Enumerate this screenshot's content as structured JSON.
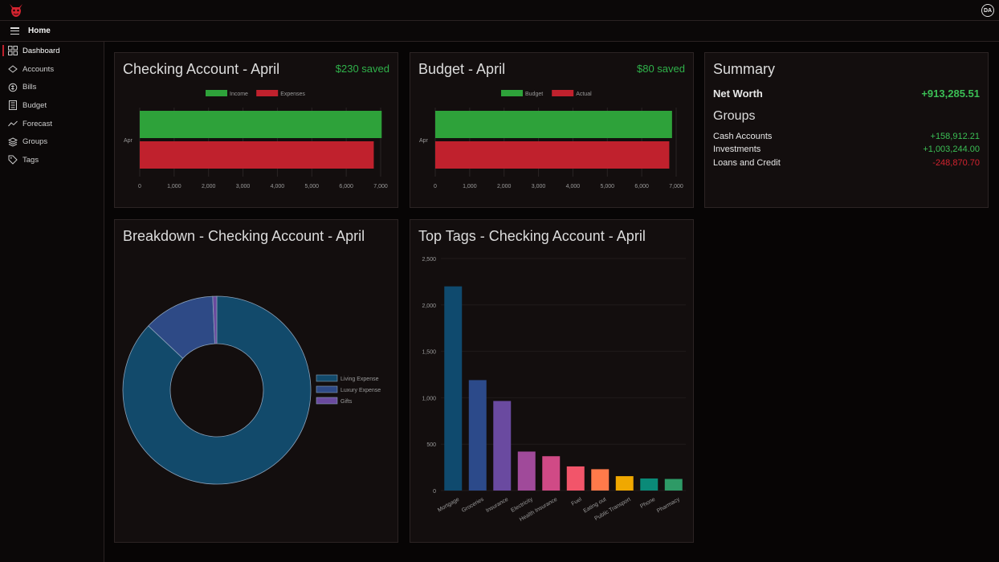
{
  "header": {
    "user_initials": "DA"
  },
  "subbar": {
    "title": "Home"
  },
  "sidebar": {
    "items": [
      {
        "label": "Dashboard",
        "icon": "dashboard-icon",
        "active": true
      },
      {
        "label": "Accounts",
        "icon": "accounts-icon"
      },
      {
        "label": "Bills",
        "icon": "bills-icon"
      },
      {
        "label": "Budget",
        "icon": "budget-icon"
      },
      {
        "label": "Forecast",
        "icon": "forecast-icon"
      },
      {
        "label": "Groups",
        "icon": "groups-icon"
      },
      {
        "label": "Tags",
        "icon": "tags-icon"
      }
    ]
  },
  "colors": {
    "accent": "#c0212d",
    "green": "#2ea23a",
    "red": "#c0212d",
    "positive": "#3bbf55",
    "negative": "#d2232f"
  },
  "checking_card": {
    "title": "Checking Account - April",
    "saved": "$230 saved"
  },
  "budget_card": {
    "title": "Budget - April",
    "saved": "$80 saved"
  },
  "summary": {
    "title": "Summary",
    "net_worth_label": "Net Worth",
    "net_worth_value": "+913,285.51",
    "groups_title": "Groups",
    "groups": [
      {
        "label": "Cash Accounts",
        "value": "+158,912.21"
      },
      {
        "label": "Investments",
        "value": "+1,003,244.00"
      },
      {
        "label": "Loans and Credit",
        "value": "-248,870.70"
      }
    ]
  },
  "breakdown_card": {
    "title": "Breakdown - Checking Account - April"
  },
  "tags_card": {
    "title": "Top Tags - Checking Account - April"
  },
  "chart_data": [
    {
      "type": "bar",
      "orientation": "horizontal",
      "categories": [
        "Apr"
      ],
      "series": [
        {
          "name": "Income",
          "values": [
            7030
          ],
          "color": "#2ea23a"
        },
        {
          "name": "Expenses",
          "values": [
            6800
          ],
          "color": "#c0212d"
        }
      ],
      "xlim": [
        0,
        7000
      ],
      "xticks": [
        "0",
        "1,000",
        "2,000",
        "3,000",
        "4,000",
        "5,000",
        "6,000",
        "7,000"
      ],
      "legend": "top-center"
    },
    {
      "type": "bar",
      "orientation": "horizontal",
      "categories": [
        "Apr"
      ],
      "series": [
        {
          "name": "Budget",
          "values": [
            6880
          ],
          "color": "#2ea23a"
        },
        {
          "name": "Actual",
          "values": [
            6800
          ],
          "color": "#c0212d"
        }
      ],
      "xlim": [
        0,
        7000
      ],
      "xticks": [
        "0",
        "1,000",
        "2,000",
        "3,000",
        "4,000",
        "5,000",
        "6,000",
        "7,000"
      ],
      "legend": "top-center"
    },
    {
      "type": "pie",
      "variant": "doughnut",
      "labels": [
        "Living Expense",
        "Luxury Expense",
        "Gifts"
      ],
      "values": [
        87,
        12.3,
        0.7
      ],
      "colors": [
        "#124a6b",
        "#2e4a86",
        "#6a4a9e"
      ],
      "legend": "right"
    },
    {
      "type": "bar",
      "categories": [
        "Mortgage",
        "Groceries",
        "Insurance",
        "Electricity",
        "Health Insurance",
        "Fuel",
        "Eating out",
        "Public Transport",
        "Phone",
        "Pharmacy"
      ],
      "values": [
        2200,
        1190,
        965,
        420,
        370,
        260,
        230,
        155,
        130,
        125
      ],
      "colors": [
        "#0f4a6e",
        "#2c4a8a",
        "#6a4aa0",
        "#a04a9a",
        "#d04a86",
        "#f2556a",
        "#ff7a4a",
        "#f0a800",
        "#0a8a78",
        "#2e9a66"
      ],
      "ylim": [
        0,
        2500
      ],
      "yticks": [
        "0",
        "500",
        "1,000",
        "1,500",
        "2,000",
        "2,500"
      ]
    }
  ]
}
